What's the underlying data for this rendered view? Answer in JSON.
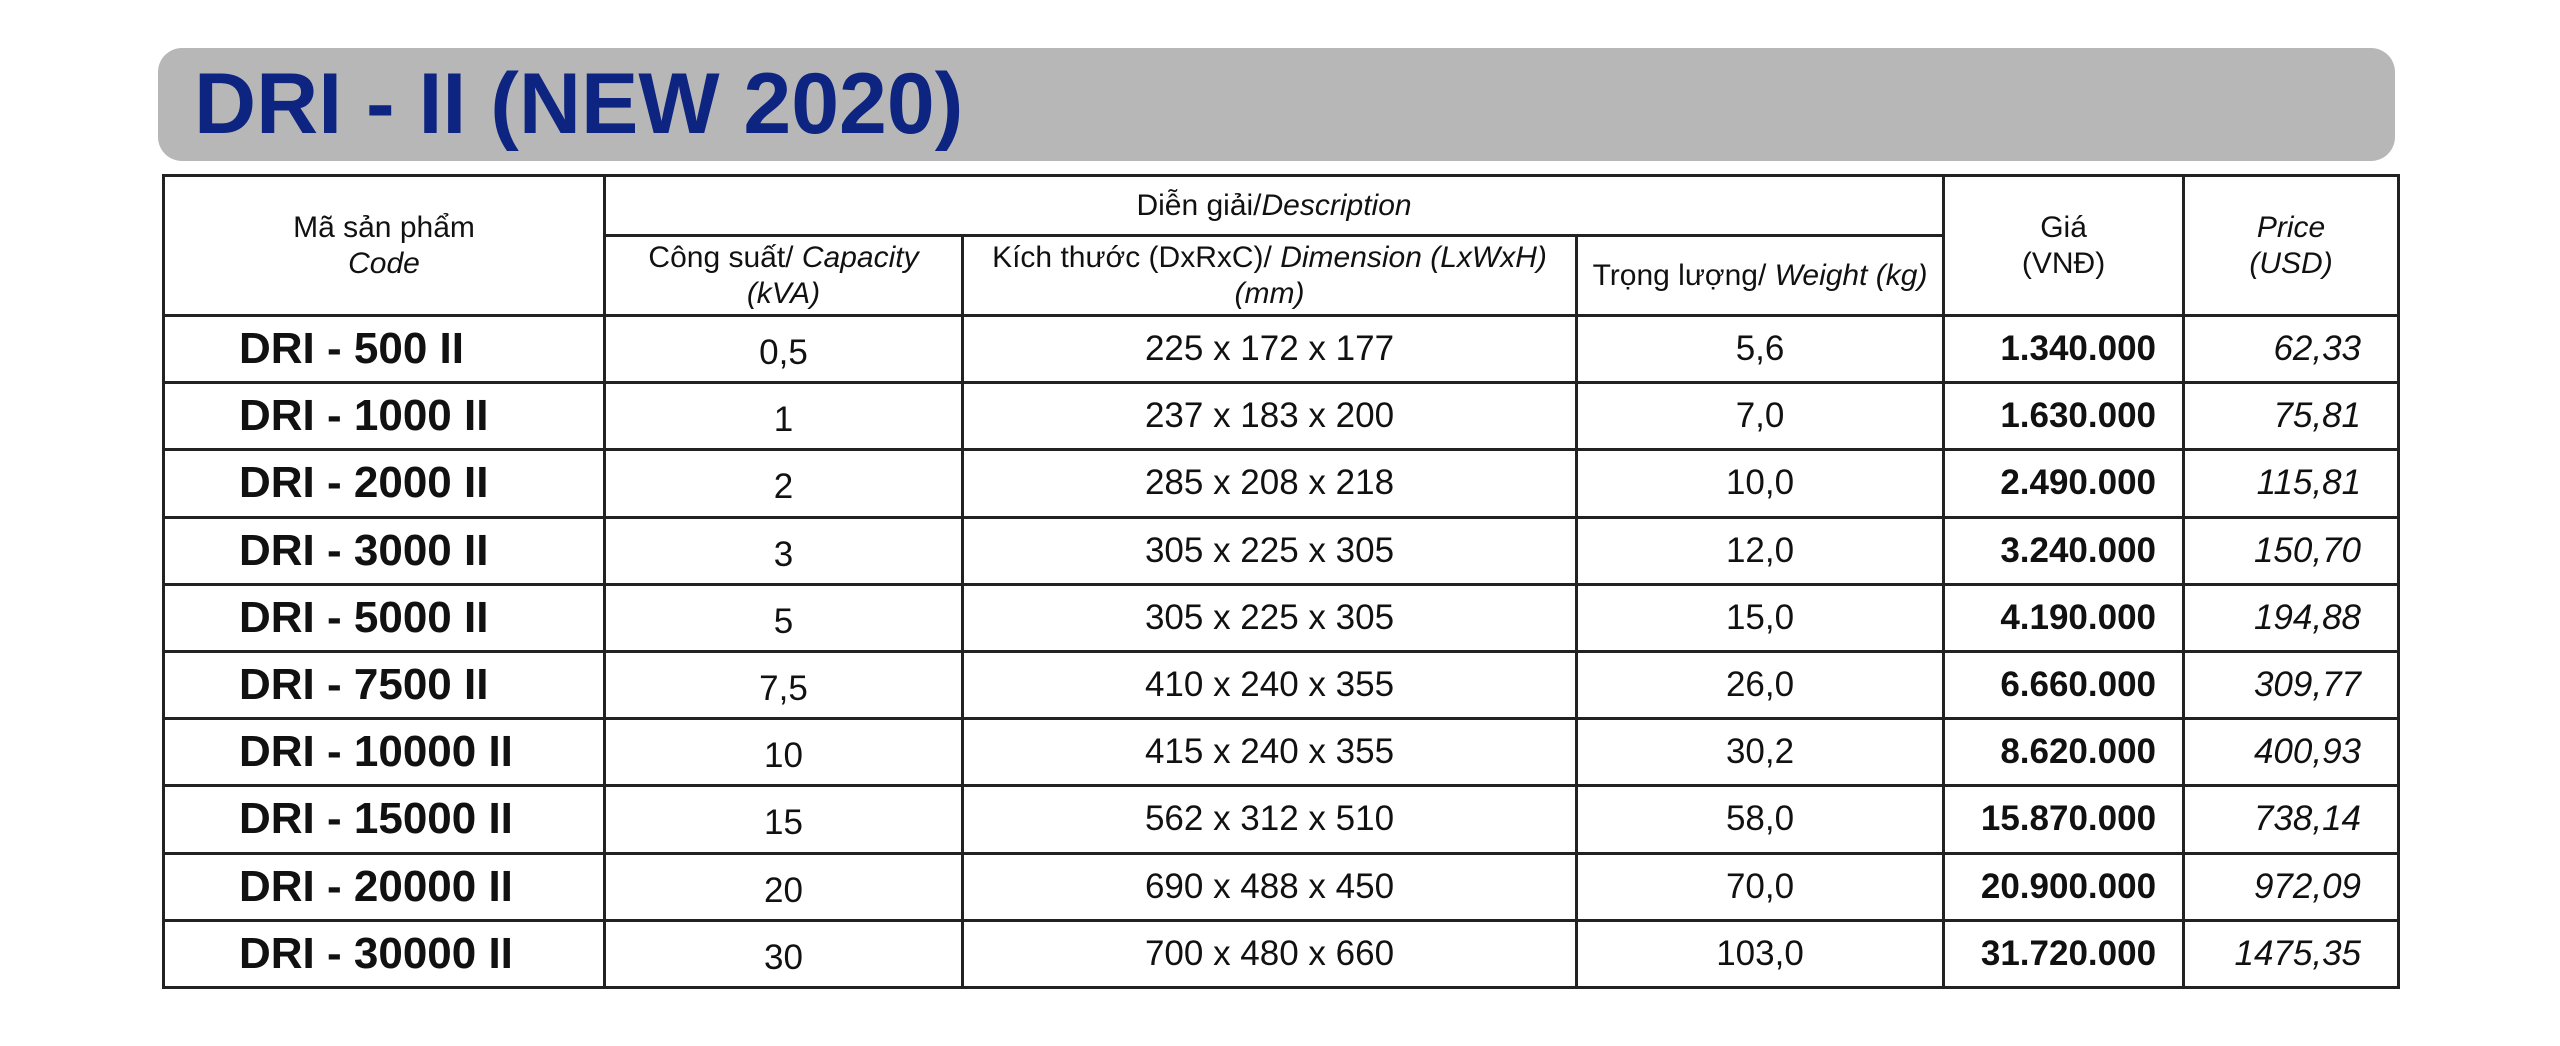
{
  "title": "DRI - II (NEW 2020)",
  "headers": {
    "code_vi": "Mã sản phẩm",
    "code_en": "Code",
    "description_vi": "Diễn giải/",
    "description_en": "Description",
    "capacity_vi": "Công suất/ ",
    "capacity_en": "Capacity",
    "capacity_unit": "(kVA)",
    "dimension_vi": "Kích thước (DxRxC)/ ",
    "dimension_en": "Dimension (LxWxH)",
    "dimension_unit": "(mm)",
    "weight_vi": "Trọng lượng/ ",
    "weight_en": "Weight (kg)",
    "price_vnd_vi": "Giá",
    "price_vnd_unit": "(VNĐ)",
    "price_usd_en": "Price",
    "price_usd_unit": "(USD)"
  },
  "rows": [
    {
      "code": "DRI - 500 II",
      "capacity": "0,5",
      "dimension": "225 x 172 x 177",
      "weight": "5,6",
      "price_vnd": "1.340.000",
      "price_usd": "62,33"
    },
    {
      "code": "DRI - 1000 II",
      "capacity": "1",
      "dimension": "237 x 183 x 200",
      "weight": "7,0",
      "price_vnd": "1.630.000",
      "price_usd": "75,81"
    },
    {
      "code": "DRI - 2000 II",
      "capacity": "2",
      "dimension": "285 x 208 x 218",
      "weight": "10,0",
      "price_vnd": "2.490.000",
      "price_usd": "115,81"
    },
    {
      "code": "DRI - 3000 II",
      "capacity": "3",
      "dimension": "305 x 225 x 305",
      "weight": "12,0",
      "price_vnd": "3.240.000",
      "price_usd": "150,70"
    },
    {
      "code": "DRI - 5000 II",
      "capacity": "5",
      "dimension": "305 x 225 x 305",
      "weight": "15,0",
      "price_vnd": "4.190.000",
      "price_usd": "194,88"
    },
    {
      "code": "DRI - 7500 II",
      "capacity": "7,5",
      "dimension": "410 x 240 x 355",
      "weight": "26,0",
      "price_vnd": "6.660.000",
      "price_usd": "309,77"
    },
    {
      "code": "DRI - 10000 II",
      "capacity": "10",
      "dimension": "415 x 240 x 355",
      "weight": "30,2",
      "price_vnd": "8.620.000",
      "price_usd": "400,93"
    },
    {
      "code": "DRI - 15000 II",
      "capacity": "15",
      "dimension": "562 x 312 x 510",
      "weight": "58,0",
      "price_vnd": "15.870.000",
      "price_usd": "738,14"
    },
    {
      "code": "DRI - 20000 II",
      "capacity": "20",
      "dimension": "690 x 488 x 450",
      "weight": "70,0",
      "price_vnd": "20.900.000",
      "price_usd": "972,09"
    },
    {
      "code": "DRI - 30000 II",
      "capacity": "30",
      "dimension": "700 x 480 x 660",
      "weight": "103,0",
      "price_vnd": "31.720.000",
      "price_usd": "1475,35"
    }
  ]
}
